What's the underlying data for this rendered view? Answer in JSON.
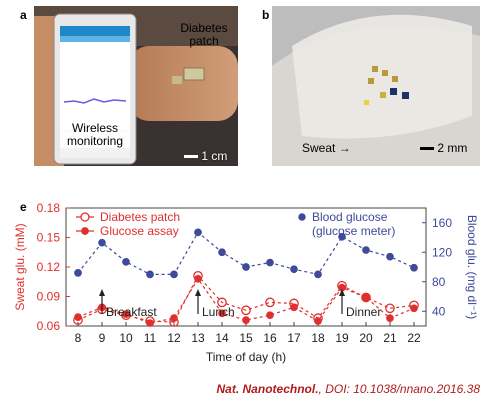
{
  "panel_a": {
    "letter": "a",
    "label_patch": "Diabetes patch",
    "label_wireless": "Wireless monitoring",
    "scale": "1 cm"
  },
  "panel_b": {
    "letter": "b",
    "label_sweat": "Sweat",
    "scale": "2 mm"
  },
  "panel_e": {
    "letter": "e"
  },
  "colors": {
    "red": "#e0302e",
    "blue": "#3f4a9a",
    "axis": "#444444"
  },
  "chart_data": {
    "type": "line",
    "xlabel": "Time of day (h)",
    "ylabel_left": "Sweat glu. (mM)",
    "ylabel_right": "Blood glu. (mg dl⁻¹)",
    "x": [
      8,
      9,
      10,
      11,
      12,
      13,
      14,
      15,
      16,
      17,
      18,
      19,
      20,
      21,
      22
    ],
    "xlim": [
      7.5,
      22.5
    ],
    "ylim_left": [
      0.06,
      0.18
    ],
    "yticks_left": [
      "0.06",
      "0.09",
      "0.12",
      "0.15",
      "0.18"
    ],
    "ylim_right": [
      20,
      180
    ],
    "yticks_right": [
      "40",
      "80",
      "120",
      "160"
    ],
    "series": [
      {
        "name": "Diabetes patch",
        "axis": "left",
        "marker": "open-circle",
        "color": "#e0302e",
        "values": [
          0.066,
          0.077,
          0.071,
          0.065,
          0.064,
          0.111,
          0.084,
          0.076,
          0.084,
          0.083,
          0.068,
          0.101,
          0.089,
          0.078,
          0.081
        ]
      },
      {
        "name": "Glucose assay",
        "axis": "left",
        "marker": "filled-circle",
        "color": "#e0302e",
        "values": [
          0.069,
          0.079,
          0.072,
          0.063,
          0.068,
          0.108,
          0.073,
          0.066,
          0.071,
          0.079,
          0.065,
          0.099,
          0.089,
          0.068,
          0.078
        ]
      },
      {
        "name": "Blood glucose (glucose meter)",
        "axis": "right",
        "marker": "filled-circle",
        "color": "#3f4a9a",
        "values": [
          92,
          133,
          107,
          90,
          90,
          147,
          120,
          100,
          106,
          97,
          90,
          141,
          123,
          114,
          99
        ]
      }
    ],
    "annotations": [
      {
        "x": 9,
        "label": "Breakfast"
      },
      {
        "x": 13,
        "label": "Lunch"
      },
      {
        "x": 19,
        "label": "Dinner"
      }
    ],
    "legend_position": "top"
  },
  "citation": {
    "journal": "Nat. Nanotechnol.",
    "doi": ", DOI: 10.1038/nnano.2016.38"
  }
}
